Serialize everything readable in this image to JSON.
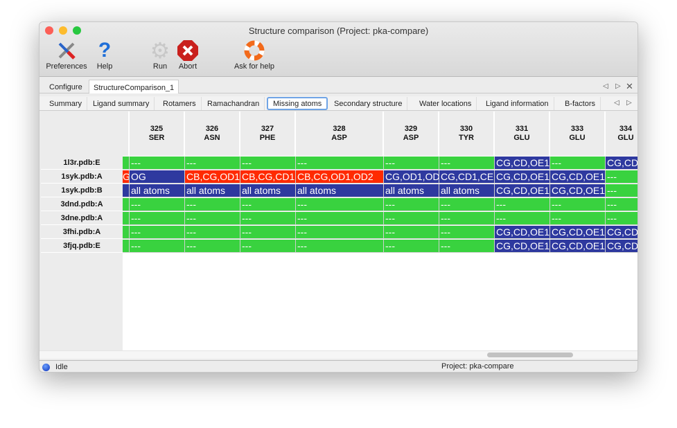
{
  "window": {
    "title": "Structure comparison (Project: pka-compare)"
  },
  "toolbar": [
    {
      "label": "Preferences",
      "icon": "preferences-tools-icon"
    },
    {
      "label": "Help",
      "icon": "help-question-icon"
    },
    {
      "label": "Run",
      "icon": "run-gear-icon"
    },
    {
      "label": "Abort",
      "icon": "abort-stop-icon"
    },
    {
      "label": "Ask for help",
      "icon": "lifebuoy-icon"
    }
  ],
  "top_tabs": [
    {
      "label": "Configure"
    },
    {
      "label": "StructureComparison_1",
      "active": true
    }
  ],
  "sub_tabs": [
    {
      "label": "Summary"
    },
    {
      "label": "Ligand summary"
    },
    {
      "label": "Rotamers"
    },
    {
      "label": "Ramachandran"
    },
    {
      "label": "Missing atoms",
      "active": true
    },
    {
      "label": "Secondary structure"
    },
    {
      "label": "Water locations"
    },
    {
      "label": "Ligand information"
    },
    {
      "label": "B-factors"
    }
  ],
  "colors": {
    "ok": "#39d23f",
    "missing": "#2e399f",
    "partial": "#ff2a00"
  },
  "table": {
    "columns": [
      {
        "num": "",
        "res": ""
      },
      {
        "num": "325",
        "res": "SER"
      },
      {
        "num": "326",
        "res": "ASN"
      },
      {
        "num": "327",
        "res": "PHE"
      },
      {
        "num": "328",
        "res": "ASP"
      },
      {
        "num": "329",
        "res": "ASP"
      },
      {
        "num": "330",
        "res": "TYR"
      },
      {
        "num": "331",
        "res": "GLU"
      },
      {
        "num": "333",
        "res": "GLU"
      },
      {
        "num": "334",
        "res": "GLU"
      }
    ],
    "rows": [
      {
        "label": "1l3r.pdb:E",
        "cells": [
          [
            "",
            "ok"
          ],
          [
            "---",
            "ok"
          ],
          [
            "---",
            "ok"
          ],
          [
            "---",
            "ok"
          ],
          [
            "---",
            "ok"
          ],
          [
            "---",
            "ok"
          ],
          [
            "---",
            "ok"
          ],
          [
            "CG,CD,OE1",
            "missing"
          ],
          [
            "---",
            "ok"
          ],
          [
            "CG,CD",
            "missing"
          ]
        ]
      },
      {
        "label": "1syk.pdb:A",
        "cells": [
          [
            "G",
            "partial"
          ],
          [
            "OG",
            "missing"
          ],
          [
            "CB,CG,OD1",
            "partial"
          ],
          [
            "CB,CG,CD1",
            "partial"
          ],
          [
            "CB,CG,OD1,OD2",
            "partial"
          ],
          [
            "CG,OD1,OD",
            "missing"
          ],
          [
            "CG,CD1,CE",
            "missing"
          ],
          [
            "CG,CD,OE1",
            "missing"
          ],
          [
            "CG,CD,OE1",
            "missing"
          ],
          [
            "---",
            "ok"
          ]
        ]
      },
      {
        "label": "1syk.pdb:B",
        "cells": [
          [
            "",
            "missing"
          ],
          [
            "all atoms",
            "missing"
          ],
          [
            "all atoms",
            "missing"
          ],
          [
            "all atoms",
            "missing"
          ],
          [
            "all atoms",
            "missing"
          ],
          [
            "all atoms",
            "missing"
          ],
          [
            "all atoms",
            "missing"
          ],
          [
            "CG,CD,OE1",
            "missing"
          ],
          [
            "CG,CD,OE1",
            "missing"
          ],
          [
            "---",
            "ok"
          ]
        ]
      },
      {
        "label": "3dnd.pdb:A",
        "cells": [
          [
            "",
            "ok"
          ],
          [
            "---",
            "ok"
          ],
          [
            "---",
            "ok"
          ],
          [
            "---",
            "ok"
          ],
          [
            "---",
            "ok"
          ],
          [
            "---",
            "ok"
          ],
          [
            "---",
            "ok"
          ],
          [
            "---",
            "ok"
          ],
          [
            "---",
            "ok"
          ],
          [
            "---",
            "ok"
          ]
        ]
      },
      {
        "label": "3dne.pdb:A",
        "cells": [
          [
            "",
            "ok"
          ],
          [
            "---",
            "ok"
          ],
          [
            "---",
            "ok"
          ],
          [
            "---",
            "ok"
          ],
          [
            "---",
            "ok"
          ],
          [
            "---",
            "ok"
          ],
          [
            "---",
            "ok"
          ],
          [
            "---",
            "ok"
          ],
          [
            "---",
            "ok"
          ],
          [
            "---",
            "ok"
          ]
        ]
      },
      {
        "label": "3fhi.pdb:A",
        "cells": [
          [
            "",
            "ok"
          ],
          [
            "---",
            "ok"
          ],
          [
            "---",
            "ok"
          ],
          [
            "---",
            "ok"
          ],
          [
            "---",
            "ok"
          ],
          [
            "---",
            "ok"
          ],
          [
            "---",
            "ok"
          ],
          [
            "CG,CD,OE1",
            "missing"
          ],
          [
            "CG,CD,OE1",
            "missing"
          ],
          [
            "CG,CD",
            "missing"
          ]
        ]
      },
      {
        "label": "3fjq.pdb:E",
        "cells": [
          [
            "",
            "ok"
          ],
          [
            "---",
            "ok"
          ],
          [
            "---",
            "ok"
          ],
          [
            "---",
            "ok"
          ],
          [
            "---",
            "ok"
          ],
          [
            "---",
            "ok"
          ],
          [
            "---",
            "ok"
          ],
          [
            "CG,CD,OE1",
            "missing"
          ],
          [
            "CG,CD,OE1",
            "missing"
          ],
          [
            "CG,CD",
            "missing"
          ]
        ]
      }
    ]
  },
  "status": {
    "state": "Idle",
    "project": "Project: pka-compare"
  }
}
